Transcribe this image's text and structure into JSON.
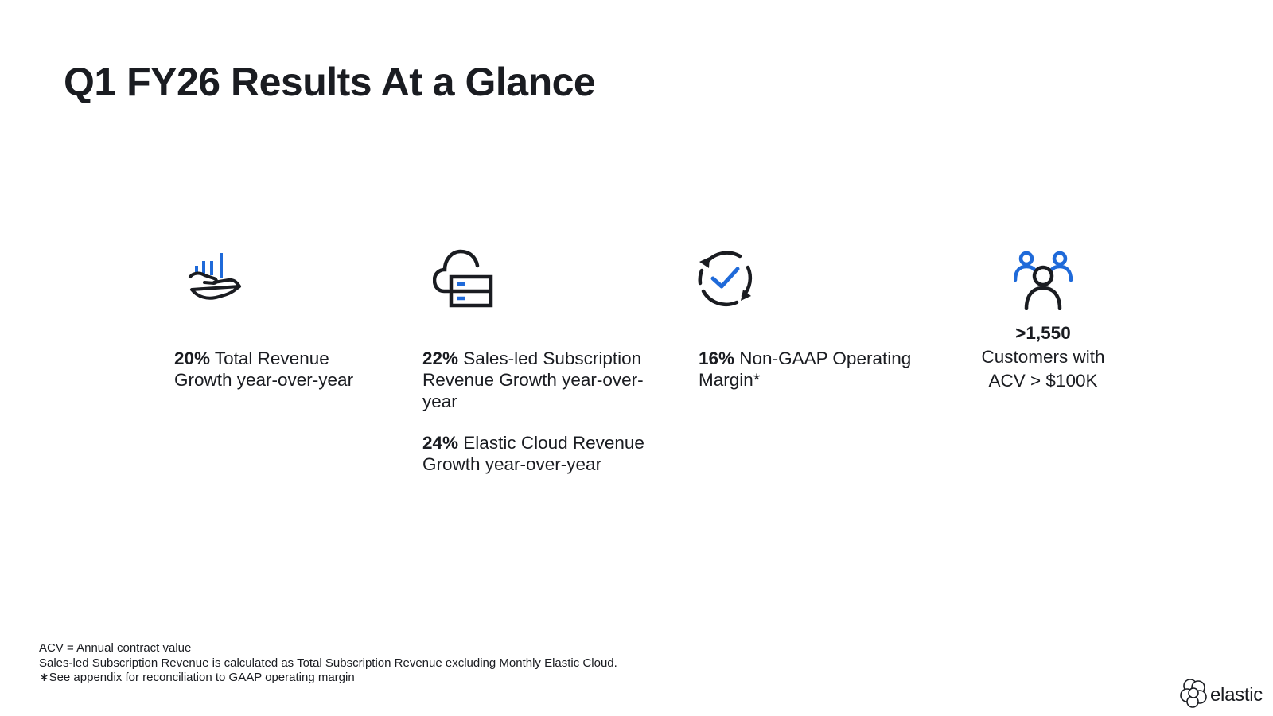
{
  "title": "Q1 FY26 Results At a Glance",
  "colors": {
    "accent_blue": "#1f6ad9",
    "dark_navy": "#1a1c21"
  },
  "metrics": [
    {
      "icon": "hand-bar-chart-icon",
      "items": [
        {
          "value": "20%",
          "text": " Total Revenue Growth year-over-year"
        }
      ]
    },
    {
      "icon": "cloud-server-icon",
      "items": [
        {
          "value": "22%",
          "text": " Sales-led Subscription Revenue Growth year-over-year"
        },
        {
          "value": "24%",
          "text": " Elastic Cloud Revenue Growth year-over-year"
        }
      ]
    },
    {
      "icon": "refresh-check-icon",
      "items": [
        {
          "value": "16%",
          "text": " Non-GAAP Operating Margin*"
        }
      ]
    },
    {
      "icon": "customers-group-icon",
      "items": [
        {
          "value": ">1,550",
          "line1": "Customers with",
          "line2": "ACV > $100K"
        }
      ]
    }
  ],
  "footnotes": [
    "ACV = Annual contract value",
    "Sales-led Subscription Revenue is calculated as Total Subscription Revenue excluding Monthly Elastic Cloud.",
    "∗See appendix for reconciliation to GAAP operating margin"
  ],
  "brand": {
    "wordmark": "elastic",
    "logo_icon": "elastic-logo-icon"
  }
}
